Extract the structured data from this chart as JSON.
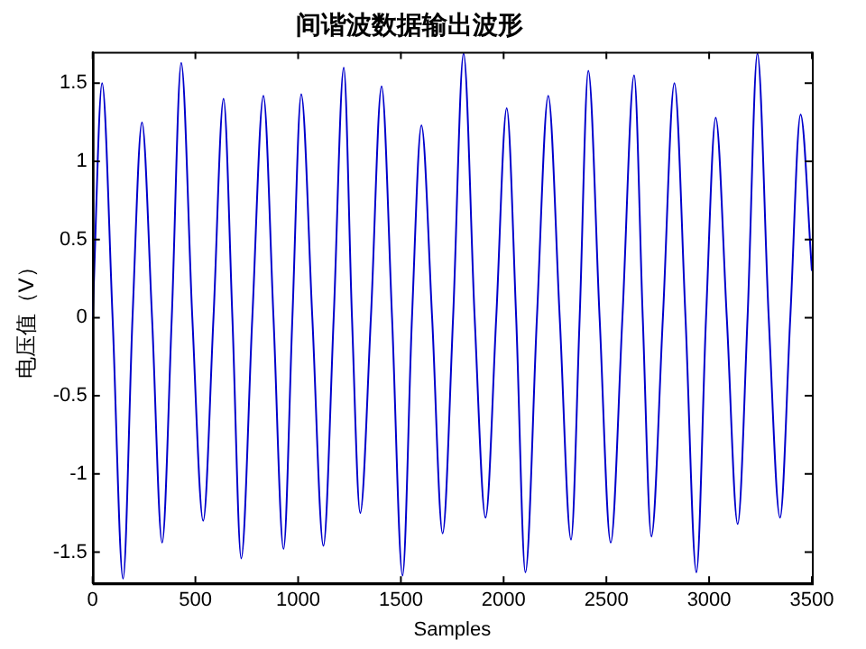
{
  "chart_data": {
    "type": "line",
    "title": "间谐波数据输出波形",
    "xlabel": "Samples",
    "ylabel": "电压值（V）",
    "x": [
      0,
      46,
      97,
      148,
      194,
      240,
      289,
      338,
      385,
      431,
      485,
      538,
      588,
      637,
      680,
      723,
      777,
      831,
      880,
      929,
      972,
      1015,
      1069,
      1123,
      1173,
      1222,
      1262,
      1302,
      1354,
      1406,
      1457,
      1508,
      1554,
      1600,
      1652,
      1703,
      1754,
      1805,
      1859,
      1912,
      1964,
      2015,
      2061,
      2106,
      2162,
      2217,
      2273,
      2328,
      2370,
      2412,
      2467,
      2521,
      2578,
      2635,
      2677,
      2719,
      2775,
      2831,
      2885,
      2938,
      2985,
      3032,
      3086,
      3139,
      3187,
      3235,
      3290,
      3345,
      3395,
      3445,
      3500
    ],
    "series": [
      {
        "color": "#0000cc",
        "values": [
          0,
          1.5,
          0,
          -1.67,
          0,
          1.25,
          0,
          -1.44,
          0,
          1.63,
          0,
          -1.3,
          0,
          1.4,
          0,
          -1.54,
          0,
          1.42,
          0,
          -1.48,
          0,
          1.43,
          0,
          -1.46,
          0,
          1.6,
          0,
          -1.25,
          0,
          1.48,
          0,
          -1.65,
          0,
          1.23,
          0,
          -1.38,
          0,
          1.69,
          0,
          -1.28,
          0,
          1.34,
          0,
          -1.63,
          0,
          1.42,
          0,
          -1.42,
          0,
          1.58,
          0,
          -1.44,
          0,
          1.55,
          0,
          -1.4,
          0,
          1.5,
          0,
          -1.63,
          0,
          1.28,
          0,
          -1.32,
          0,
          1.69,
          0,
          -1.28,
          0,
          1.3,
          0.3
        ]
      }
    ],
    "xlim": [
      0,
      3500
    ],
    "xticks": [
      0,
      500,
      1000,
      1500,
      2000,
      2500,
      3000,
      3500
    ],
    "ylim": [
      -1.7,
      1.7
    ],
    "yticks": [
      -1.5,
      -1,
      -0.5,
      0,
      0.5,
      1,
      1.5
    ],
    "grid": false,
    "legend": false,
    "marker": "none",
    "line_style": "solid"
  }
}
